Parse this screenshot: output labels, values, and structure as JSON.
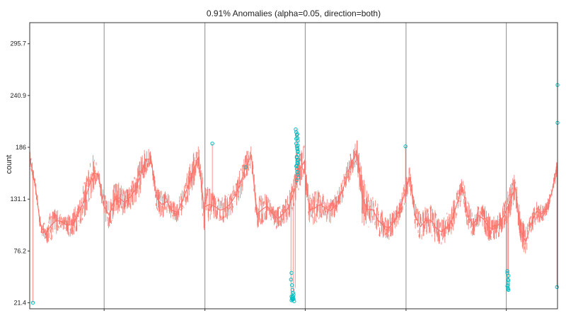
{
  "colors": {
    "series": "#f8766d",
    "anomaly": "#00bfc4",
    "panel_border": "#333333",
    "vline": "#8c8c8c",
    "background": "#ffffff"
  },
  "chart_data": {
    "type": "line",
    "title": "0.91% Anomalies (alpha=0.05, direction=both)",
    "xlabel": "",
    "ylabel": "count",
    "ylim": [
      15,
      318
    ],
    "xlim": [
      0,
      100
    ],
    "y_ticks": [
      21.4,
      76.2,
      131.1,
      186,
      240.9,
      295.7
    ],
    "y_tick_labels": [
      "21.4",
      "76.2",
      "131.1",
      "186",
      "240.9",
      "295.7"
    ],
    "x_ticks": [
      14.1,
      33.2,
      52.2,
      71.3,
      90.3
    ],
    "x_tick_labels": [
      "",
      "",
      "",
      "",
      ""
    ],
    "vertical_lines": [
      14.1,
      33.2,
      52.2,
      71.3,
      90.3
    ],
    "grid": false,
    "legend": "none",
    "series": [
      {
        "color": "#f8766d",
        "envelope": {
          "x": [
            0.0,
            1.0,
            2.0,
            3.0,
            4.0,
            5.0,
            6.0,
            7.0,
            8.0,
            9.0,
            10.0,
            11.0,
            12.0,
            13.0,
            14.0,
            15.0,
            16.0,
            17.0,
            18.0,
            19.0,
            20.0,
            21.0,
            22.0,
            23.0,
            24.0,
            25.0,
            26.0,
            27.0,
            28.0,
            29.0,
            30.0,
            31.0,
            32.0,
            33.0,
            34.0,
            35.0,
            36.0,
            37.0,
            38.0,
            39.0,
            40.0,
            41.0,
            42.0,
            43.0,
            44.0,
            45.0,
            46.0,
            47.0,
            48.0,
            49.0,
            50.0,
            51.0,
            52.0,
            53.0,
            54.0,
            55.0,
            56.0,
            57.0,
            58.0,
            59.0,
            60.0,
            61.0,
            62.0,
            63.0,
            64.0,
            65.0,
            66.0,
            67.0,
            68.0,
            69.0,
            70.0,
            71.0,
            72.0,
            73.0,
            74.0,
            75.0,
            76.0,
            77.0,
            78.0,
            79.0,
            80.0,
            81.0,
            82.0,
            83.0,
            84.0,
            85.0,
            86.0,
            87.0,
            88.0,
            89.0,
            90.0,
            91.0,
            92.0,
            93.0,
            94.0,
            95.0,
            96.0,
            97.0,
            98.0,
            99.0,
            100.0
          ],
          "low": [
            165,
            140,
            95,
            82,
            84,
            92,
            100,
            92,
            88,
            96,
            105,
            115,
            135,
            150,
            108,
            97,
            110,
            113,
            112,
            118,
            122,
            135,
            155,
            165,
            118,
            108,
            115,
            108,
            105,
            115,
            125,
            140,
            160,
            95,
            106,
            109,
            106,
            104,
            112,
            118,
            130,
            150,
            165,
            95,
            102,
            108,
            103,
            96,
            103,
            106,
            118,
            140,
            150,
            100,
            100,
            109,
            106,
            104,
            112,
            124,
            135,
            155,
            165,
            100,
            97,
            104,
            90,
            86,
            86,
            92,
            105,
            122,
            140,
            98,
            84,
            92,
            90,
            81,
            81,
            84,
            90,
            112,
            130,
            95,
            88,
            100,
            92,
            84,
            84,
            88,
            98,
            110,
            125,
            80,
            68,
            92,
            104,
            105,
            112,
            135,
            155
          ],
          "high": [
            185,
            155,
            115,
            105,
            122,
            125,
            115,
            115,
            120,
            130,
            145,
            165,
            182,
            165,
            140,
            132,
            150,
            152,
            143,
            148,
            160,
            178,
            192,
            182,
            148,
            143,
            142,
            130,
            130,
            145,
            165,
            183,
            192,
            150,
            145,
            138,
            133,
            138,
            140,
            152,
            168,
            183,
            190,
            135,
            138,
            140,
            128,
            125,
            128,
            138,
            157,
            180,
            192,
            140,
            143,
            142,
            138,
            133,
            138,
            150,
            168,
            186,
            198,
            165,
            143,
            136,
            128,
            120,
            115,
            122,
            132,
            150,
            168,
            130,
            120,
            125,
            128,
            120,
            112,
            118,
            128,
            142,
            158,
            132,
            118,
            128,
            128,
            118,
            115,
            122,
            132,
            148,
            162,
            115,
            104,
            118,
            132,
            126,
            130,
            145,
            182
          ]
        },
        "spikes": [
          {
            "x": 0.6,
            "y": 21.4
          },
          {
            "x": 34.6,
            "y": 190
          },
          {
            "x": 40.9,
            "y": 165
          },
          {
            "x": 49.5,
            "y": 27
          },
          {
            "x": 49.9,
            "y": 32
          },
          {
            "x": 50.3,
            "y": 37
          },
          {
            "x": 50.5,
            "y": 205
          },
          {
            "x": 50.8,
            "y": 200
          },
          {
            "x": 51.0,
            "y": 175
          },
          {
            "x": 71.2,
            "y": 187
          },
          {
            "x": 90.5,
            "y": 39
          },
          {
            "x": 90.7,
            "y": 46
          },
          {
            "x": 99.9,
            "y": 38
          },
          {
            "x": 100.0,
            "y": 212
          },
          {
            "x": 100.0,
            "y": 252
          }
        ]
      }
    ],
    "anomalies": {
      "color": "#00bfc4",
      "x": [
        0.6,
        34.6,
        40.9,
        49.5,
        49.6,
        49.7,
        49.8,
        49.9,
        50.0,
        49.6,
        49.8,
        49.7,
        49.9,
        49.8,
        49.6,
        50.0,
        49.9,
        50.1,
        50.4,
        50.5,
        50.6,
        50.7,
        50.8,
        50.5,
        50.6,
        50.7,
        50.8,
        50.9,
        50.6,
        50.7,
        50.8,
        50.5,
        50.6,
        50.7,
        50.8,
        50.9,
        50.6,
        50.7,
        50.8,
        50.6,
        50.7,
        50.5,
        50.8,
        50.9,
        50.6,
        50.7,
        71.2,
        90.5,
        90.6,
        90.6,
        90.7,
        90.5,
        90.6,
        90.7,
        90.6,
        90.7,
        90.5,
        90.6,
        99.9,
        100.0,
        100.0
      ],
      "y": [
        21.4,
        190,
        165,
        46,
        53,
        40,
        35,
        32,
        30,
        28,
        27,
        26,
        25,
        24.5,
        24,
        25.5,
        28,
        23,
        205,
        202,
        199,
        196,
        193,
        190,
        187,
        184,
        181,
        178,
        175,
        172,
        169,
        166,
        163,
        160,
        157,
        154,
        151,
        185,
        182,
        176,
        170,
        195,
        188,
        173,
        167,
        200,
        187,
        39,
        42,
        46,
        50,
        55,
        36,
        35,
        37,
        45,
        53,
        40,
        38,
        212,
        252
      ]
    }
  }
}
